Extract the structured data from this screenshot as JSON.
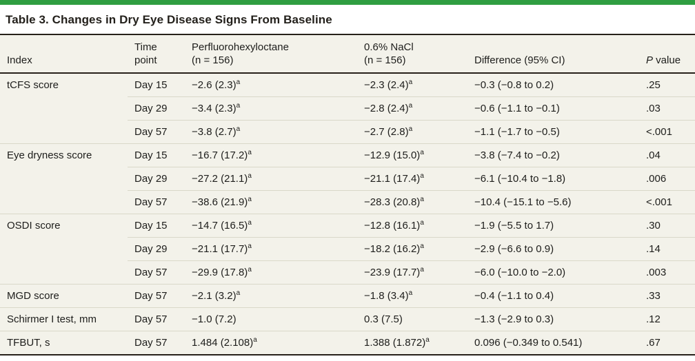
{
  "accent_green": "#2F9E41",
  "table_background": "#F3F2EA",
  "divider_color": "#D9D8C9",
  "rule_color": "#262019",
  "title": "Table 3. Changes in Dry Eye Disease Signs From Baseline",
  "columns": [
    {
      "label": "Index"
    },
    {
      "label": "Time\npoint"
    },
    {
      "label": "Perfluorohexyloctane\n(n = 156)"
    },
    {
      "label": "0.6% NaCl\n(n = 156)"
    },
    {
      "label": "Difference (95% CI)"
    },
    {
      "italic_prefix": "P",
      "label": " value"
    }
  ],
  "footnote_marker": "a",
  "rows": [
    {
      "index": "tCFS score",
      "time": "Day 15",
      "pfho": "−2.6 (2.3)",
      "pfho_sup": "a",
      "nacl": "−2.3 (2.4)",
      "nacl_sup": "a",
      "diff": "−0.3 (−0.8 to 0.2)",
      "p": ".25",
      "group_start": true
    },
    {
      "index": "",
      "time": "Day 29",
      "pfho": "−3.4 (2.3)",
      "pfho_sup": "a",
      "nacl": "−2.8 (2.4)",
      "nacl_sup": "a",
      "diff": "−0.6 (−1.1 to −0.1)",
      "p": ".03",
      "group_start": false
    },
    {
      "index": "",
      "time": "Day 57",
      "pfho": "−3.8 (2.7)",
      "pfho_sup": "a",
      "nacl": "−2.7 (2.8)",
      "nacl_sup": "a",
      "diff": "−1.1 (−1.7 to −0.5)",
      "p": "<.001",
      "group_start": false
    },
    {
      "index": "Eye dryness score",
      "time": "Day 15",
      "pfho": "−16.7 (17.2)",
      "pfho_sup": "a",
      "nacl": "−12.9 (15.0)",
      "nacl_sup": "a",
      "diff": "−3.8 (−7.4 to −0.2)",
      "p": ".04",
      "group_start": true
    },
    {
      "index": "",
      "time": "Day 29",
      "pfho": "−27.2 (21.1)",
      "pfho_sup": "a",
      "nacl": "−21.1 (17.4)",
      "nacl_sup": "a",
      "diff": "−6.1 (−10.4 to −1.8)",
      "p": ".006",
      "group_start": false
    },
    {
      "index": "",
      "time": "Day 57",
      "pfho": "−38.6 (21.9)",
      "pfho_sup": "a",
      "nacl": "−28.3 (20.8)",
      "nacl_sup": "a",
      "diff": "−10.4 (−15.1 to −5.6)",
      "p": "<.001",
      "group_start": false
    },
    {
      "index": "OSDI score",
      "time": "Day 15",
      "pfho": "−14.7 (16.5)",
      "pfho_sup": "a",
      "nacl": "−12.8 (16.1)",
      "nacl_sup": "a",
      "diff": "−1.9 (−5.5 to 1.7)",
      "p": ".30",
      "group_start": true
    },
    {
      "index": "",
      "time": "Day 29",
      "pfho": "−21.1 (17.7)",
      "pfho_sup": "a",
      "nacl": "−18.2 (16.2)",
      "nacl_sup": "a",
      "diff": "−2.9 (−6.6 to 0.9)",
      "p": ".14",
      "group_start": false
    },
    {
      "index": "",
      "time": "Day 57",
      "pfho": "−29.9 (17.8)",
      "pfho_sup": "a",
      "nacl": "−23.9 (17.7)",
      "nacl_sup": "a",
      "diff": "−6.0 (−10.0 to −2.0)",
      "p": ".003",
      "group_start": false
    },
    {
      "index": "MGD score",
      "time": "Day 57",
      "pfho": "−2.1 (3.2)",
      "pfho_sup": "a",
      "nacl": "−1.8 (3.4)",
      "nacl_sup": "a",
      "diff": "−0.4 (−1.1 to 0.4)",
      "p": ".33",
      "group_start": true
    },
    {
      "index": "Schirmer I test, mm",
      "time": "Day 57",
      "pfho": "−1.0 (7.2)",
      "pfho_sup": null,
      "nacl": "0.3 (7.5)",
      "nacl_sup": null,
      "diff": "−1.3 (−2.9 to 0.3)",
      "p": ".12",
      "group_start": true
    },
    {
      "index": "TFBUT, s",
      "time": "Day 57",
      "pfho": "1.484 (2.108)",
      "pfho_sup": "a",
      "nacl": "1.388 (1.872)",
      "nacl_sup": "a",
      "diff": "0.096 (−0.349 to 0.541)",
      "p": ".67",
      "group_start": true
    }
  ]
}
